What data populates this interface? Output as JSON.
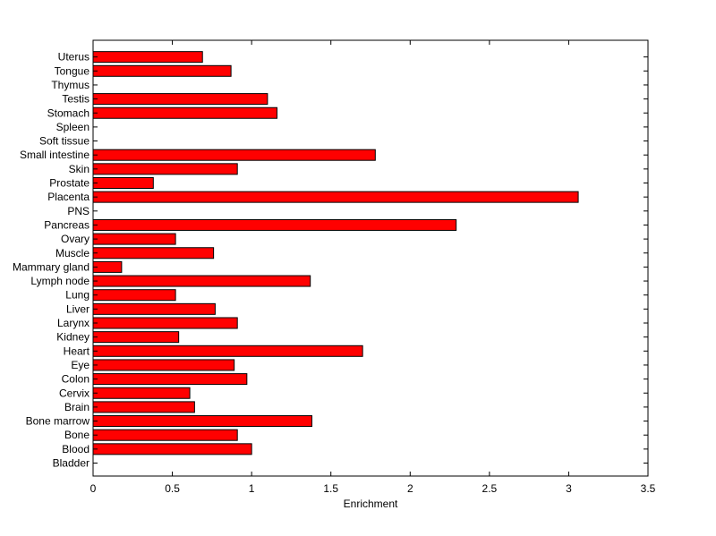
{
  "chart_data": {
    "type": "bar",
    "orientation": "horizontal",
    "categories": [
      "Bladder",
      "Blood",
      "Bone",
      "Bone marrow",
      "Brain",
      "Cervix",
      "Colon",
      "Eye",
      "Heart",
      "Kidney",
      "Larynx",
      "Liver",
      "Lung",
      "Lymph node",
      "Mammary gland",
      "Muscle",
      "Ovary",
      "Pancreas",
      "PNS",
      "Placenta",
      "Prostate",
      "Skin",
      "Small intestine",
      "Soft tissue",
      "Spleen",
      "Stomach",
      "Testis",
      "Thymus",
      "Tongue",
      "Uterus"
    ],
    "values": [
      0,
      1.0,
      0.91,
      1.38,
      0.64,
      0.61,
      0.97,
      0.89,
      1.7,
      0.54,
      0.91,
      0.77,
      0.52,
      1.37,
      0.18,
      0.76,
      0.52,
      2.29,
      0,
      3.06,
      0.38,
      0.91,
      1.78,
      0,
      0,
      1.16,
      1.1,
      0,
      0.87,
      0.69
    ],
    "xlim": [
      0,
      3.5
    ],
    "xticks": [
      "0",
      "0.5",
      "1",
      "1.5",
      "2",
      "2.5",
      "3",
      "3.5"
    ],
    "xlabel": "Enrichment",
    "ylabel": "",
    "title": "",
    "grid": false,
    "bar_color": "#ff0000",
    "bar_edge_color": "#000000"
  }
}
